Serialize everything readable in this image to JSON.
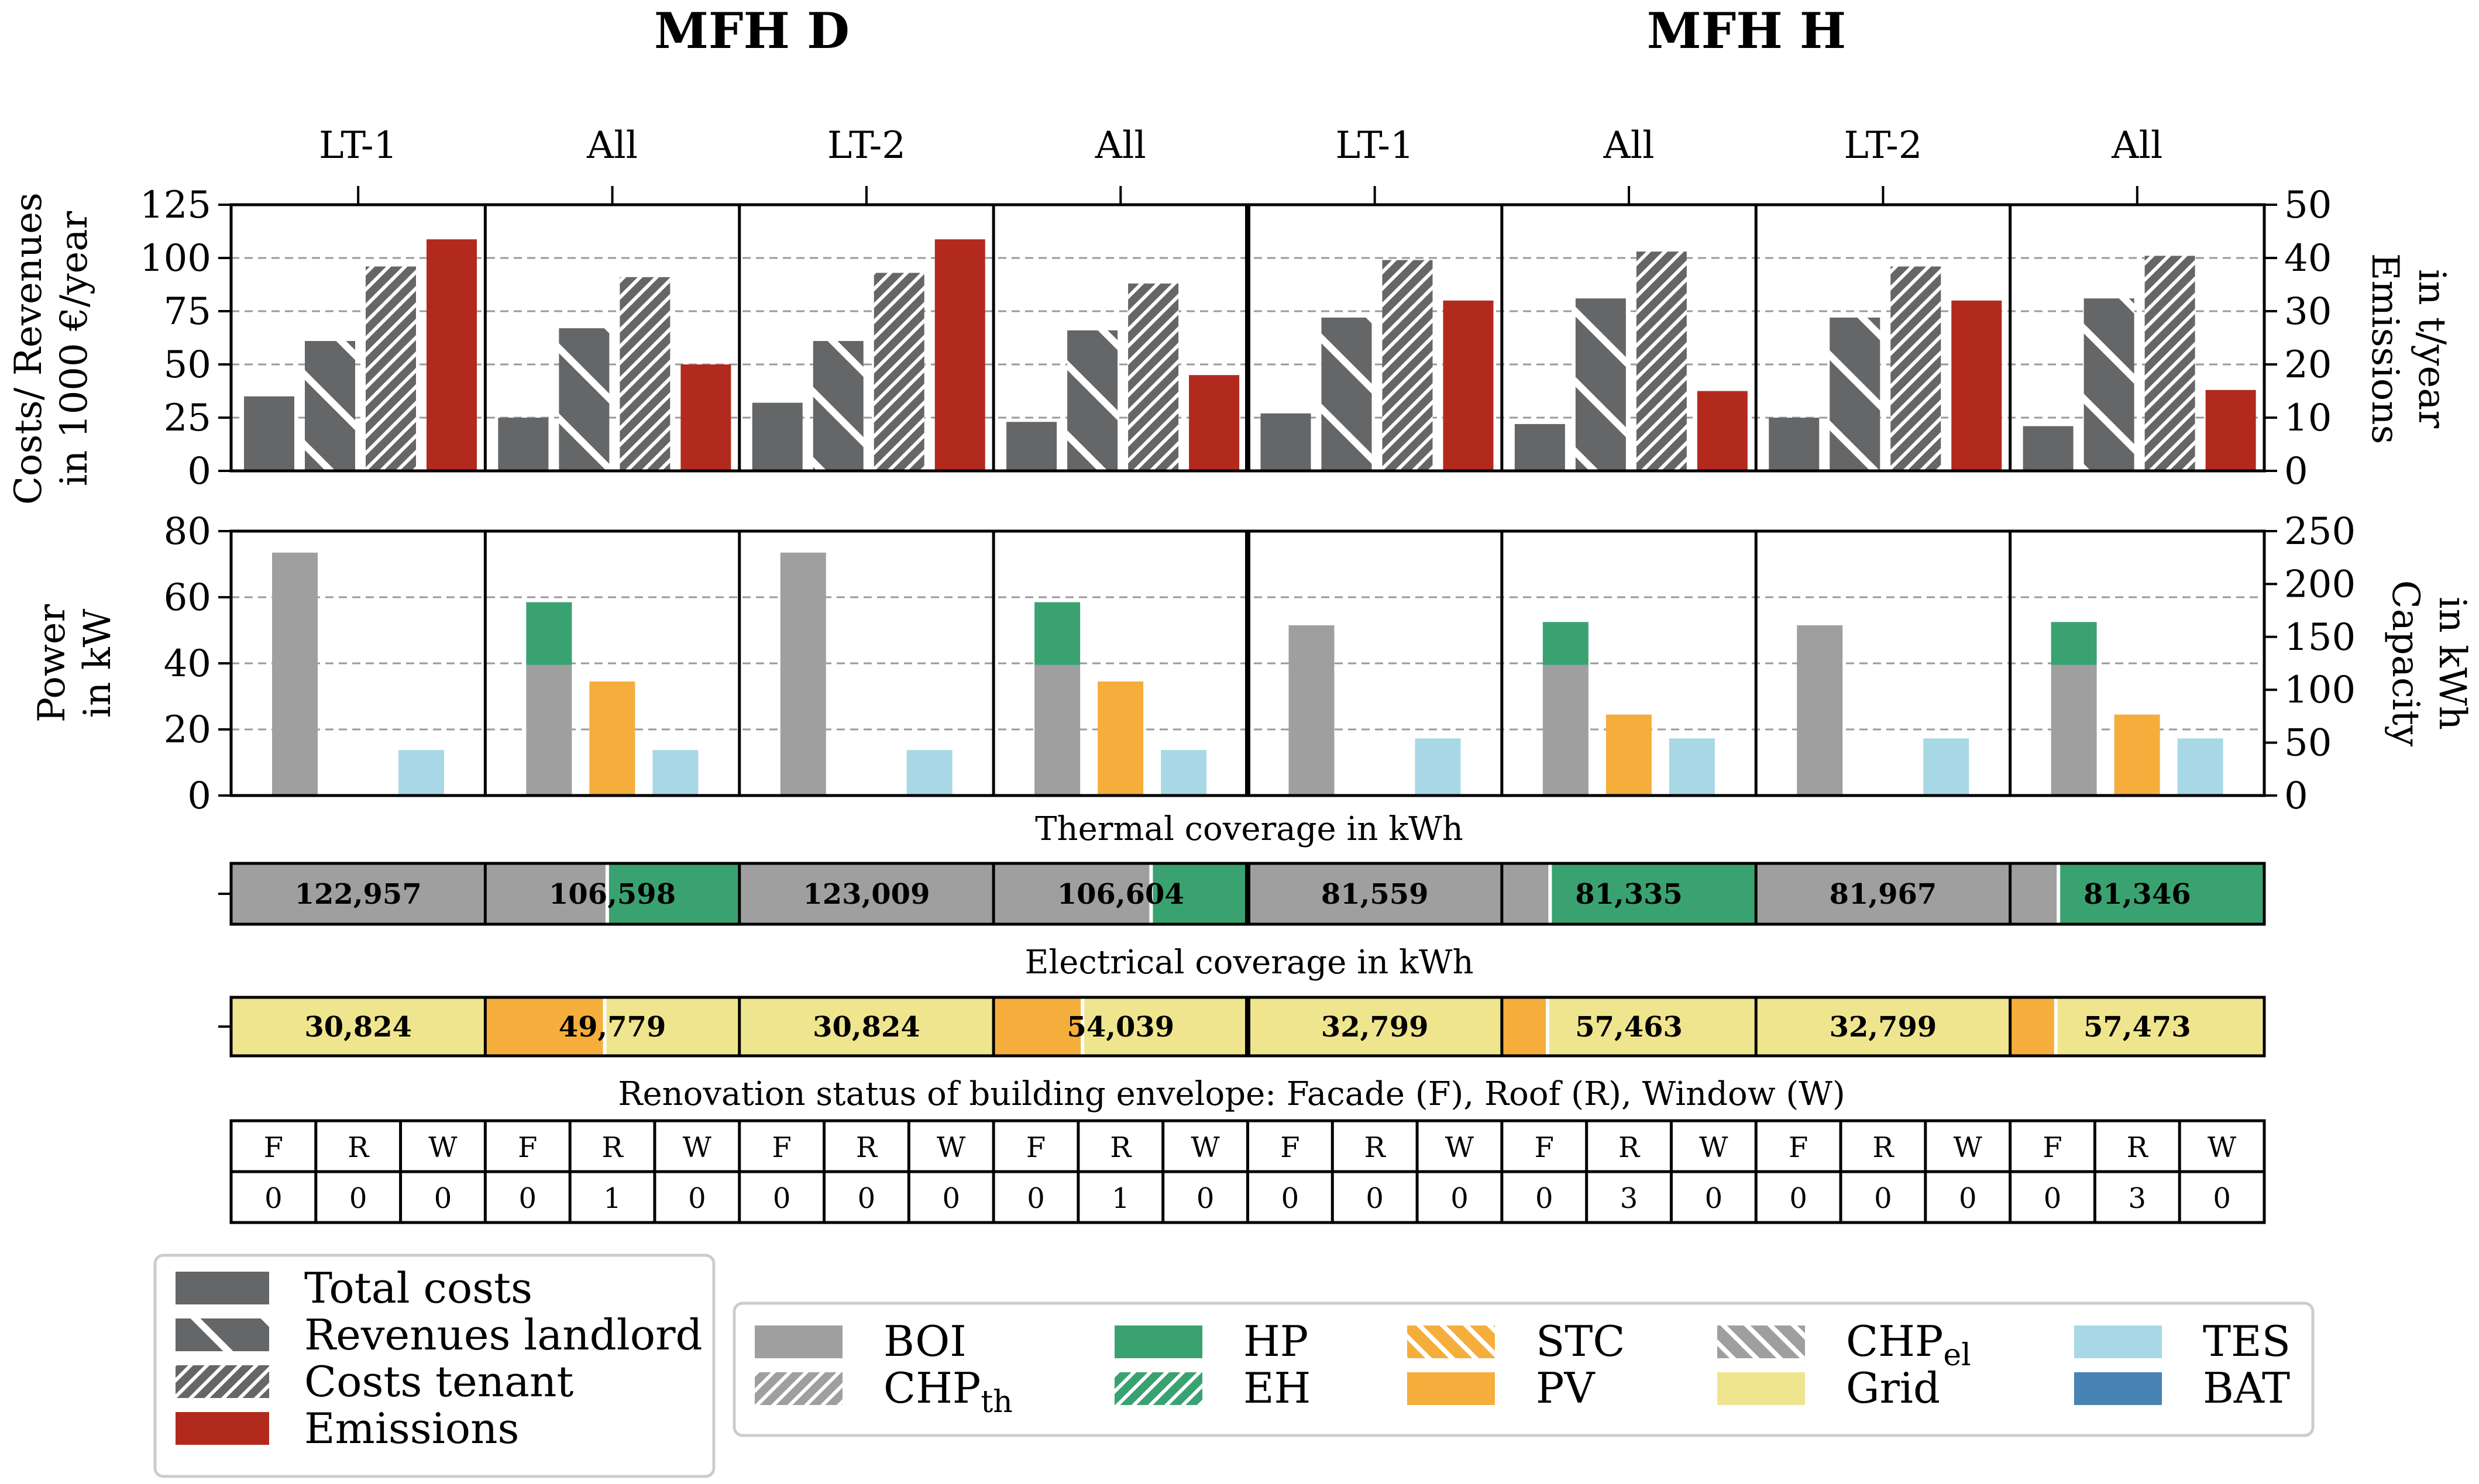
{
  "chart_data": {
    "type": "bar",
    "building_titles": [
      "MFH D",
      "MFH H"
    ],
    "panel_labels": [
      "LT-1",
      "All",
      "LT-2",
      "All",
      "LT-1",
      "All",
      "LT-2",
      "All"
    ],
    "colors": {
      "total_costs": "#646668",
      "emissions": "#b22a1e",
      "boi": "#9f9f9f",
      "hp": "#3aa271",
      "pv": "#f5ae3c",
      "tes": "#a8d8e6",
      "grid": "#efe58e",
      "bat": "#4783b5"
    },
    "costs": {
      "ylabel_line1": "Costs/ Revenues",
      "ylabel_line2": "in 1000 €/year",
      "y2label_line1": "Emissions",
      "y2label_line2": "in t/year",
      "ylim": [
        0,
        125
      ],
      "y2lim": [
        0,
        50
      ],
      "yticks": [
        "0",
        "25",
        "50",
        "75",
        "100",
        "125"
      ],
      "y2ticks": [
        "0",
        "10",
        "20",
        "30",
        "40",
        "50"
      ],
      "series": [
        {
          "name": "Total costs",
          "values": [
            35,
            25,
            32,
            23,
            27,
            22,
            25,
            21
          ]
        },
        {
          "name": "Revenues landlord",
          "values": [
            61,
            67,
            61,
            66,
            72,
            81,
            72,
            81
          ]
        },
        {
          "name": "Costs tenant",
          "values": [
            96,
            91,
            93,
            88,
            99,
            103,
            96,
            101
          ]
        },
        {
          "name": "Emissions",
          "values": [
            43.5,
            20,
            43.5,
            18,
            32,
            15,
            32,
            15.2
          ]
        }
      ]
    },
    "power": {
      "ylabel_line1": "Power",
      "ylabel_line2": "in kW",
      "y2label_line1": "Capacity",
      "y2label_line2": "in kWh",
      "ylim": [
        0,
        80
      ],
      "y2lim": [
        0,
        250
      ],
      "yticks": [
        "0",
        "20",
        "40",
        "60",
        "80"
      ],
      "y2ticks": [
        "0",
        "50",
        "100",
        "150",
        "200",
        "250"
      ],
      "boi_kw": [
        73.5,
        39.5,
        73.5,
        39.5,
        51.5,
        39.5,
        51.5,
        39.5
      ],
      "hp_kw": [
        0,
        19,
        0,
        19,
        0,
        13,
        0,
        13
      ],
      "pv_kw": [
        0,
        34.5,
        0,
        34.5,
        0,
        24.5,
        0,
        24.5
      ],
      "tes_kwh": [
        43,
        43,
        43,
        43,
        54,
        54,
        54,
        54
      ]
    },
    "thermal": {
      "title": "Thermal coverage in kWh",
      "totals": [
        "122,957",
        "106,598",
        "123,009",
        "106,604",
        "81,559",
        "81,335",
        "81,967",
        "81,346"
      ],
      "hp_share": [
        0,
        0.52,
        0,
        0.38,
        0,
        0.81,
        0,
        0.81
      ]
    },
    "electrical": {
      "title": "Electrical coverage in kWh",
      "totals": [
        "30,824",
        "49,779",
        "30,824",
        "54,039",
        "32,799",
        "57,463",
        "32,799",
        "57,473"
      ],
      "pv_share": [
        0,
        0.47,
        0,
        0.35,
        0,
        0.18,
        0,
        0.18
      ]
    },
    "renovation": {
      "title": "Renovation status of building envelope: Facade (F), Roof (R), Window (W)",
      "headers": [
        "F",
        "R",
        "W"
      ],
      "values": [
        [
          0,
          0,
          0
        ],
        [
          0,
          1,
          0
        ],
        [
          0,
          0,
          0
        ],
        [
          0,
          1,
          0
        ],
        [
          0,
          0,
          0
        ],
        [
          0,
          3,
          0
        ],
        [
          0,
          0,
          0
        ],
        [
          0,
          3,
          0
        ]
      ]
    },
    "legend_left": [
      "Total costs",
      "Revenues landlord",
      "Costs tenant",
      "Emissions"
    ],
    "legend_right": [
      {
        "label": "BOI",
        "sub": ""
      },
      {
        "label": "CHP",
        "sub": "th"
      },
      {
        "label": "HP",
        "sub": ""
      },
      {
        "label": "EH",
        "sub": ""
      },
      {
        "label": "STC",
        "sub": ""
      },
      {
        "label": "PV",
        "sub": ""
      },
      {
        "label": "CHP",
        "sub": "el"
      },
      {
        "label": "Grid",
        "sub": ""
      },
      {
        "label": "TES",
        "sub": ""
      },
      {
        "label": "BAT",
        "sub": ""
      }
    ]
  }
}
